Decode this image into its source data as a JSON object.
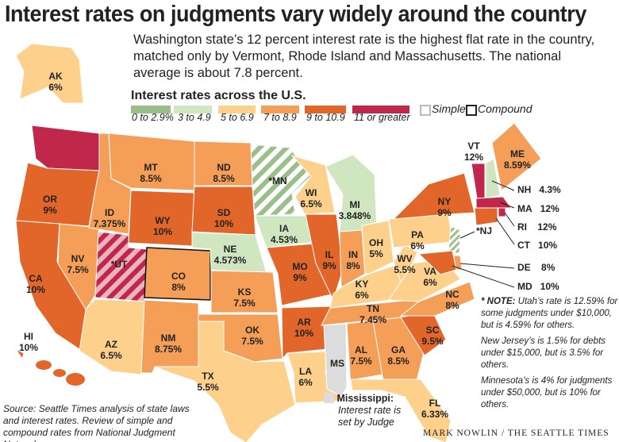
{
  "title": "Interest rates on judgments vary widely around the country",
  "intro": "Washington state’s 12 percent interest rate is the highest flat rate in the country, matched only by Vermont, Rhode Island and Massachusetts. The national average is about 7.8 percent.",
  "legend": {
    "title": "Interest rates across the U.S.",
    "categories": [
      {
        "label": "0 to 2.9%",
        "color": "#9bbf8b"
      },
      {
        "label": "3 to 4.9",
        "color": "#cfe6c1"
      },
      {
        "label": "5 to 6.9",
        "color": "#fdd08c"
      },
      {
        "label": "7 to 8.9",
        "color": "#f59e58"
      },
      {
        "label": "9 to 10.9",
        "color": "#e2662a"
      },
      {
        "label": "11 or greater",
        "color": "#c1264b"
      }
    ],
    "simple": "Simple",
    "compound": "Compound"
  },
  "states": {
    "AK": {
      "name": "AK",
      "rate": "6%",
      "cat": 2
    },
    "HI": {
      "name": "HI",
      "rate": "10%",
      "cat": 4
    },
    "WA": {
      "name": "",
      "rate": "",
      "cat": 5
    },
    "OR": {
      "name": "OR",
      "rate": "9%",
      "cat": 4
    },
    "CA": {
      "name": "CA",
      "rate": "10%",
      "cat": 4
    },
    "NV": {
      "name": "NV",
      "rate": "7.5%",
      "cat": 3
    },
    "ID": {
      "name": "ID",
      "rate": "7.375%",
      "cat": 3
    },
    "MT": {
      "name": "MT",
      "rate": "8.5%",
      "cat": 3
    },
    "WY": {
      "name": "WY",
      "rate": "10%",
      "cat": 4
    },
    "UT": {
      "name": "*UT",
      "rate": "",
      "cat": 5,
      "striped": true
    },
    "CO": {
      "name": "CO",
      "rate": "8%",
      "cat": 3,
      "compound": true
    },
    "AZ": {
      "name": "AZ",
      "rate": "6.5%",
      "cat": 2
    },
    "NM": {
      "name": "NM",
      "rate": "8.75%",
      "cat": 3
    },
    "ND": {
      "name": "ND",
      "rate": "8.5%",
      "cat": 3
    },
    "SD": {
      "name": "SD",
      "rate": "10%",
      "cat": 4
    },
    "NE": {
      "name": "NE",
      "rate": "4.573%",
      "cat": 1
    },
    "KS": {
      "name": "KS",
      "rate": "7.5%",
      "cat": 3
    },
    "OK": {
      "name": "OK",
      "rate": "7.5%",
      "cat": 3
    },
    "TX": {
      "name": "TX",
      "rate": "5.5%",
      "cat": 2
    },
    "MN": {
      "name": "*MN",
      "rate": "",
      "cat": 1,
      "striped": true
    },
    "IA": {
      "name": "IA",
      "rate": "4.53%",
      "cat": 1
    },
    "MO": {
      "name": "MO",
      "rate": "9%",
      "cat": 4
    },
    "AR": {
      "name": "AR",
      "rate": "10%",
      "cat": 4
    },
    "LA": {
      "name": "LA",
      "rate": "6%",
      "cat": 2
    },
    "WI": {
      "name": "WI",
      "rate": "6.5%",
      "cat": 2
    },
    "IL": {
      "name": "IL",
      "rate": "9%",
      "cat": 4
    },
    "MI": {
      "name": "MI",
      "rate": "3.848%",
      "cat": 1
    },
    "IN": {
      "name": "IN",
      "rate": "8%",
      "cat": 3
    },
    "OH": {
      "name": "OH",
      "rate": "5%",
      "cat": 2
    },
    "KY": {
      "name": "KY",
      "rate": "6%",
      "cat": 2
    },
    "TN": {
      "name": "TN",
      "rate": "7.45%",
      "cat": 3
    },
    "MS": {
      "name": "MS",
      "rate": "",
      "cat": -1
    },
    "AL": {
      "name": "AL",
      "rate": "7.5%",
      "cat": 3
    },
    "GA": {
      "name": "GA",
      "rate": "8.5%",
      "cat": 3
    },
    "FL": {
      "name": "FL",
      "rate": "6.33%",
      "cat": 2
    },
    "SC": {
      "name": "SC",
      "rate": "9.5%",
      "cat": 4
    },
    "NC": {
      "name": "NC",
      "rate": "8%",
      "cat": 3
    },
    "VA": {
      "name": "VA",
      "rate": "6%",
      "cat": 2
    },
    "WV": {
      "name": "WV",
      "rate": "5.5%",
      "cat": 2
    },
    "PA": {
      "name": "PA",
      "rate": "6%",
      "cat": 2
    },
    "NY": {
      "name": "NY",
      "rate": "9%",
      "cat": 4
    },
    "VT": {
      "name": "VT",
      "rate": "12%",
      "cat": 5
    },
    "NH": {
      "name": "",
      "rate": "",
      "cat": 1
    },
    "ME": {
      "name": "ME",
      "rate": "8.59%",
      "cat": 3
    },
    "MA": {
      "name": "",
      "rate": "",
      "cat": 5
    },
    "RI": {
      "name": "",
      "rate": "",
      "cat": 5
    },
    "CT": {
      "name": "",
      "rate": "",
      "cat": 4
    },
    "NJ": {
      "name": "",
      "rate": "",
      "cat": 0,
      "striped": true
    },
    "DE": {
      "name": "",
      "rate": "",
      "cat": 3
    },
    "MD": {
      "name": "",
      "rate": "",
      "cat": 4
    }
  },
  "callouts": {
    "NH": {
      "name": "NH",
      "rate": "4.3%"
    },
    "MA": {
      "name": "MA",
      "rate": "12%"
    },
    "RI": {
      "name": "RI",
      "rate": "12%"
    },
    "CT": {
      "name": "CT",
      "rate": "10%"
    },
    "NJ": {
      "name": "*NJ",
      "rate": ""
    },
    "DE": {
      "name": "DE",
      "rate": "8%"
    },
    "MD": {
      "name": "MD",
      "rate": "10%"
    }
  },
  "mississippi": {
    "title": "Mississippi:",
    "text": "Interest rate is set by Judge",
    "color": "#dcdcdc"
  },
  "notes": {
    "utah_label": "* NOTE:",
    "utah": "Utah’s rate is 12.59% for some judgments under $10,000, but is 4.59% for others.",
    "nj": "New Jersey’s is 1.5% for debts under $15,000, but is 3.5% for others.",
    "mn": "Minnesota’s is 4% for judgments under $50,000, but is 10% for others."
  },
  "source": "Source: Seattle Times analysis of state laws and interest rates. Review of simple and compound rates from National Judgment Network.",
  "credit": "MARK NOWLIN / THE SEATTLE TIMES"
}
